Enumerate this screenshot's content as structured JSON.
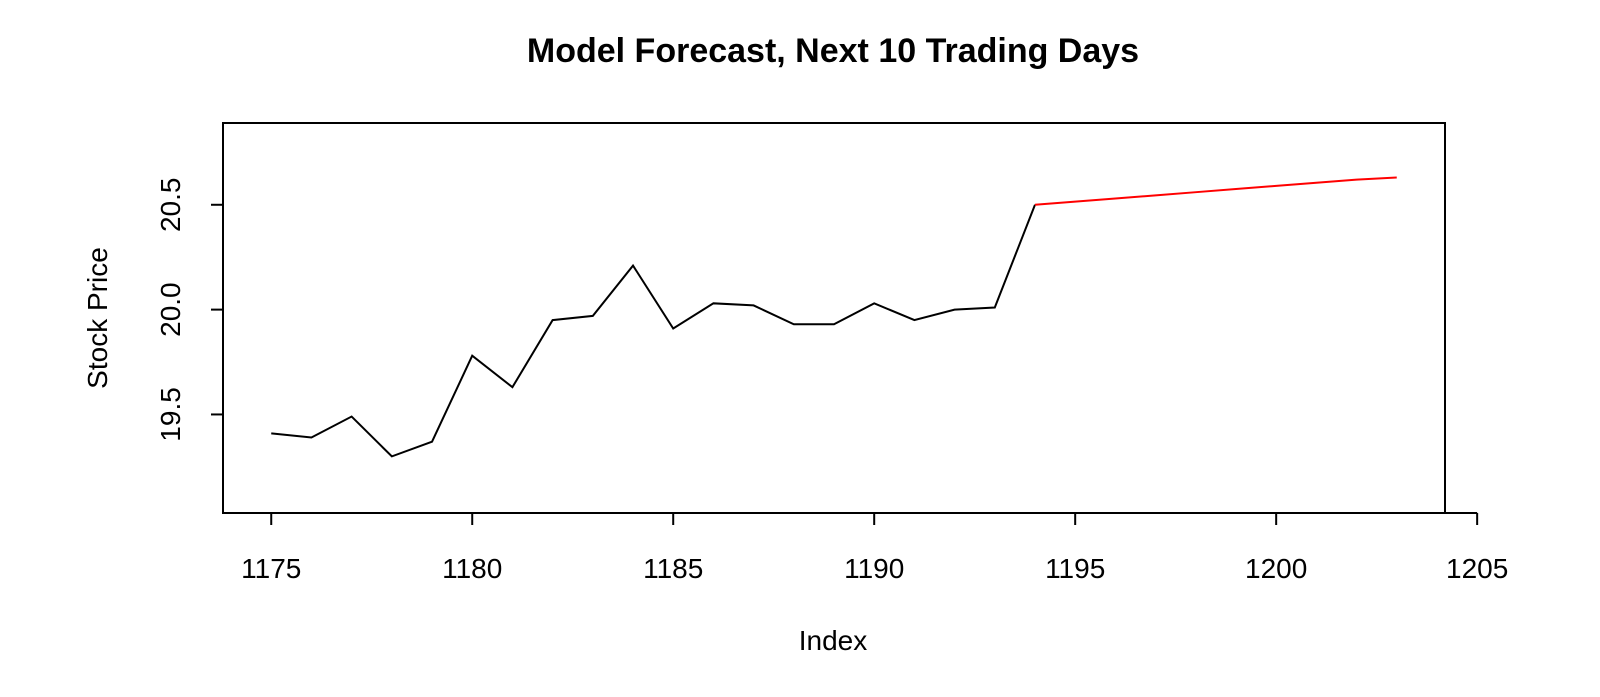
{
  "chart_data": {
    "type": "line",
    "title": "Model Forecast, Next 10 Trading Days",
    "xlabel": "Index",
    "ylabel": "Stock Price",
    "xlim": [
      1173.8,
      1204.2
    ],
    "ylim": [
      19.03,
      20.89
    ],
    "x_ticks": [
      1175,
      1180,
      1185,
      1190,
      1195,
      1200,
      1205
    ],
    "x_tick_labels": [
      "1175",
      "1180",
      "1185",
      "1190",
      "1195",
      "1200",
      "1205"
    ],
    "y_ticks": [
      19.5,
      20.0,
      20.5
    ],
    "y_tick_labels": [
      "19.5",
      "20.0",
      "20.5"
    ],
    "grid": false,
    "legend": "none",
    "series": [
      {
        "color": "#000000",
        "x": [
          1175,
          1176,
          1177,
          1178,
          1179,
          1180,
          1181,
          1182,
          1183,
          1184,
          1185,
          1186,
          1187,
          1188,
          1189,
          1190,
          1191,
          1192,
          1193,
          1194
        ],
        "y": [
          19.41,
          19.39,
          19.49,
          19.3,
          19.37,
          19.78,
          19.63,
          19.95,
          19.97,
          20.21,
          19.91,
          20.03,
          20.02,
          19.93,
          19.93,
          20.03,
          19.95,
          20.0,
          20.01,
          20.5
        ]
      },
      {
        "color": "#ff0000",
        "x": [
          1194,
          1195,
          1196,
          1197,
          1198,
          1199,
          1200,
          1201,
          1202,
          1203
        ],
        "y": [
          20.5,
          20.515,
          20.53,
          20.545,
          20.56,
          20.575,
          20.59,
          20.605,
          20.62,
          20.63
        ]
      }
    ]
  }
}
